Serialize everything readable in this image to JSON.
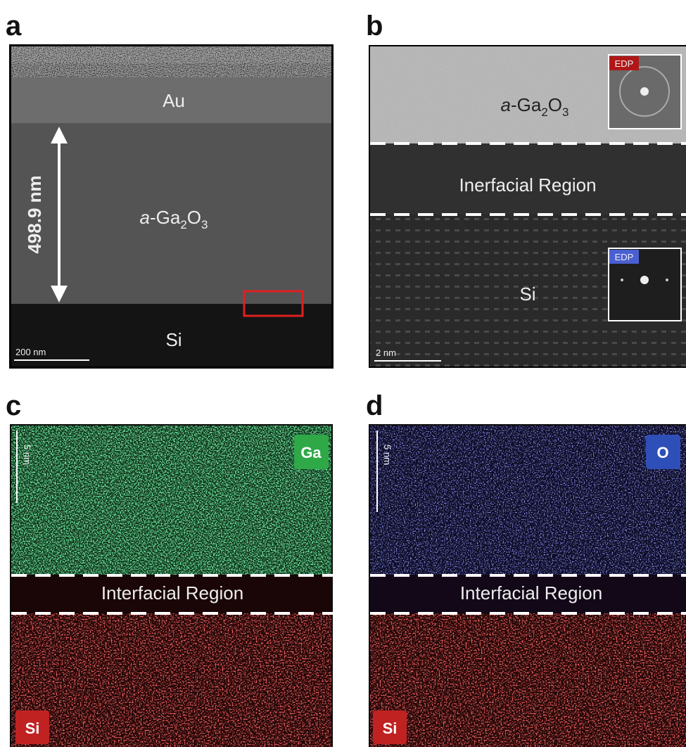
{
  "panel_a": {
    "letter": "a",
    "top_layer": "Au",
    "film_label": [
      "a",
      "-Ga",
      "2",
      "O",
      "3"
    ],
    "thickness": "498.9 nm",
    "substrate": "Si",
    "scale_bar": "200 nm"
  },
  "panel_b": {
    "letter": "b",
    "film_label": [
      "a",
      "-Ga",
      "2",
      "O",
      "3"
    ],
    "film_inset": "EDP",
    "interface": "Inerfacial Region",
    "substrate": "Si",
    "substrate_inset": "EDP",
    "scale_bar": "2 nm"
  },
  "panel_c": {
    "letter": "c",
    "scale_bar": "5 nm",
    "element_top": "Ga",
    "interface": "Interfacial Region",
    "element_bottom": "Si"
  },
  "panel_d": {
    "letter": "d",
    "scale_bar": "5 nm",
    "element_top": "O",
    "interface": "Interfacial Region",
    "element_bottom": "Si"
  }
}
